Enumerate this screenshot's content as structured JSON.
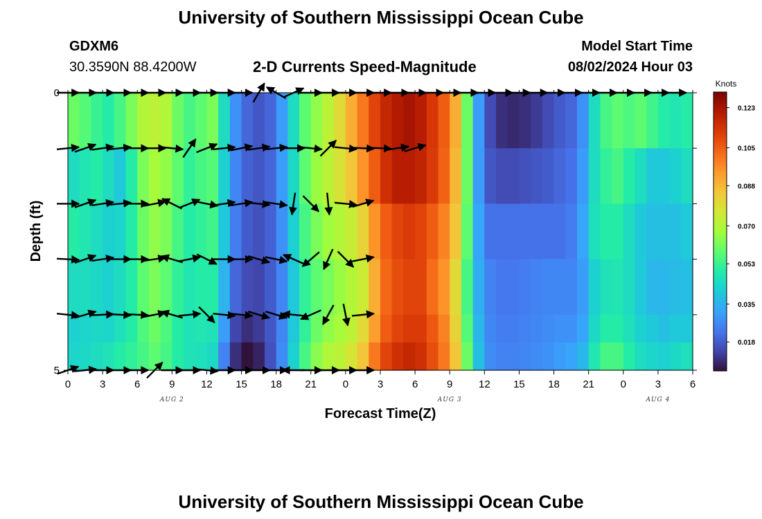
{
  "header": {
    "title": "University of Southern Mississippi Ocean Cube",
    "station": "GDXM6",
    "coords": "30.3590N  88.4200W",
    "subtitle": "2-D Currents Speed-Magnitude",
    "model_start_label": "Model Start Time",
    "model_start_value": "08/02/2024 Hour 03"
  },
  "footer": {
    "title": "University of Southern Mississippi Ocean Cube"
  },
  "chart_data": {
    "type": "heatmap",
    "xlabel": "Forecast Time(Z)",
    "ylabel": "Depth (ft)",
    "x_tick_labels": [
      "0",
      "3",
      "6",
      "9",
      "12",
      "15",
      "18",
      "21",
      "0",
      "3",
      "6",
      "9",
      "12",
      "15",
      "18",
      "21",
      "0",
      "3",
      "6"
    ],
    "date_labels": [
      {
        "label": "AUG 2",
        "hour": 9
      },
      {
        "label": "AUG 3",
        "hour": 33
      },
      {
        "label": "AUG 4",
        "hour": 51
      }
    ],
    "y_tick_labels": [
      "0",
      "5"
    ],
    "ylim": [
      0,
      5
    ],
    "xlim": [
      0,
      54
    ],
    "colorbar": {
      "units": "Knots",
      "min": 0.005,
      "max": 0.13,
      "tick_labels": [
        "0.123",
        "0.105",
        "0.088",
        "0.070",
        "0.053",
        "0.035",
        "0.018"
      ]
    },
    "hours": [
      0,
      1,
      2,
      3,
      4,
      5,
      6,
      7,
      8,
      9,
      10,
      11,
      12,
      13,
      14,
      15,
      16,
      17,
      18,
      19,
      20,
      21,
      22,
      23,
      24,
      25,
      26,
      27,
      28,
      29,
      30,
      31,
      32,
      33,
      34,
      35,
      36,
      37,
      38,
      39,
      40,
      41,
      42,
      43,
      44,
      45,
      46,
      47,
      48,
      49,
      50,
      51,
      52,
      53
    ],
    "depth_rows": [
      0.5,
      1.5,
      2.5,
      3.5,
      4.5,
      5.0
    ],
    "speed_knots": [
      [
        0.06,
        0.057,
        0.053,
        0.05,
        0.055,
        0.062,
        0.07,
        0.072,
        0.07,
        0.06,
        0.055,
        0.058,
        0.062,
        0.045,
        0.028,
        0.02,
        0.017,
        0.02,
        0.03,
        0.045,
        0.058,
        0.065,
        0.072,
        0.08,
        0.09,
        0.1,
        0.11,
        0.117,
        0.121,
        0.123,
        0.12,
        0.113,
        0.105,
        0.09,
        0.06,
        0.03,
        0.015,
        0.01,
        0.009,
        0.01,
        0.012,
        0.015,
        0.018,
        0.02,
        0.028,
        0.045,
        0.055,
        0.058,
        0.056,
        0.058,
        0.054,
        0.05,
        0.048,
        0.05
      ],
      [
        0.045,
        0.048,
        0.05,
        0.045,
        0.04,
        0.05,
        0.062,
        0.068,
        0.065,
        0.058,
        0.052,
        0.055,
        0.057,
        0.042,
        0.026,
        0.019,
        0.017,
        0.02,
        0.03,
        0.044,
        0.058,
        0.066,
        0.072,
        0.078,
        0.085,
        0.095,
        0.105,
        0.115,
        0.12,
        0.12,
        0.118,
        0.112,
        0.104,
        0.088,
        0.06,
        0.03,
        0.017,
        0.015,
        0.015,
        0.016,
        0.017,
        0.018,
        0.02,
        0.022,
        0.03,
        0.045,
        0.052,
        0.055,
        0.05,
        0.045,
        0.04,
        0.04,
        0.042,
        0.045
      ],
      [
        0.05,
        0.048,
        0.045,
        0.042,
        0.043,
        0.05,
        0.06,
        0.065,
        0.062,
        0.055,
        0.05,
        0.052,
        0.054,
        0.04,
        0.024,
        0.018,
        0.016,
        0.019,
        0.028,
        0.042,
        0.055,
        0.062,
        0.067,
        0.07,
        0.074,
        0.082,
        0.095,
        0.105,
        0.11,
        0.112,
        0.11,
        0.105,
        0.098,
        0.085,
        0.058,
        0.032,
        0.022,
        0.022,
        0.022,
        0.022,
        0.022,
        0.022,
        0.022,
        0.024,
        0.032,
        0.046,
        0.05,
        0.05,
        0.045,
        0.04,
        0.038,
        0.038,
        0.038,
        0.04
      ],
      [
        0.045,
        0.045,
        0.044,
        0.042,
        0.045,
        0.05,
        0.058,
        0.062,
        0.058,
        0.052,
        0.048,
        0.05,
        0.05,
        0.035,
        0.02,
        0.015,
        0.014,
        0.018,
        0.026,
        0.04,
        0.052,
        0.058,
        0.062,
        0.066,
        0.07,
        0.075,
        0.09,
        0.103,
        0.108,
        0.11,
        0.11,
        0.102,
        0.095,
        0.08,
        0.055,
        0.034,
        0.025,
        0.023,
        0.023,
        0.024,
        0.025,
        0.026,
        0.026,
        0.026,
        0.03,
        0.042,
        0.047,
        0.048,
        0.045,
        0.04,
        0.036,
        0.036,
        0.037,
        0.038
      ],
      [
        0.042,
        0.043,
        0.044,
        0.043,
        0.046,
        0.05,
        0.056,
        0.06,
        0.056,
        0.05,
        0.047,
        0.048,
        0.047,
        0.03,
        0.014,
        0.01,
        0.012,
        0.017,
        0.026,
        0.04,
        0.052,
        0.06,
        0.065,
        0.068,
        0.072,
        0.08,
        0.093,
        0.105,
        0.11,
        0.112,
        0.112,
        0.106,
        0.098,
        0.082,
        0.057,
        0.036,
        0.026,
        0.024,
        0.024,
        0.025,
        0.026,
        0.027,
        0.028,
        0.028,
        0.032,
        0.044,
        0.05,
        0.05,
        0.046,
        0.042,
        0.04,
        0.038,
        0.04,
        0.04
      ],
      [
        0.043,
        0.044,
        0.045,
        0.047,
        0.05,
        0.052,
        0.055,
        0.058,
        0.055,
        0.05,
        0.047,
        0.046,
        0.044,
        0.025,
        0.01,
        0.005,
        0.008,
        0.016,
        0.027,
        0.042,
        0.055,
        0.064,
        0.07,
        0.072,
        0.077,
        0.085,
        0.1,
        0.11,
        0.115,
        0.117,
        0.115,
        0.108,
        0.1,
        0.085,
        0.06,
        0.038,
        0.027,
        0.025,
        0.025,
        0.026,
        0.027,
        0.028,
        0.03,
        0.032,
        0.036,
        0.048,
        0.055,
        0.055,
        0.05,
        0.045,
        0.043,
        0.042,
        0.044,
        0.046
      ]
    ],
    "vector_hours": [
      0,
      1.5,
      3,
      4.5,
      6,
      7.5,
      9,
      10.5,
      12,
      13.5,
      15,
      16.5,
      18,
      19.5,
      21,
      22.5,
      24,
      25.5,
      27,
      28.5,
      30,
      31.5,
      33,
      34.5,
      36,
      37.5,
      39,
      40.5,
      42,
      43.5,
      45,
      46.5,
      48,
      49.5,
      51,
      52.5,
      54
    ],
    "vector_depths": [
      0,
      1,
      2,
      3,
      4,
      5
    ],
    "vectors": [
      [
        [
          1,
          0
        ],
        [
          1,
          0
        ],
        [
          1,
          0
        ],
        [
          1,
          0
        ],
        [
          1,
          0
        ],
        [
          1,
          0
        ],
        [
          1,
          0
        ],
        [
          1,
          0
        ],
        [
          1,
          0
        ],
        [
          1,
          0
        ],
        [
          1,
          0
        ],
        [
          0.5,
          -0.85
        ],
        [
          -0.85,
          -0.5
        ],
        [
          1,
          -0.45
        ],
        [
          1,
          0
        ],
        [
          1,
          0
        ],
        [
          1,
          0
        ],
        [
          1,
          0
        ],
        [
          1,
          0
        ],
        [
          1,
          0
        ],
        [
          1,
          0
        ],
        [
          1,
          0
        ],
        [
          1,
          0
        ],
        [
          1,
          0
        ],
        [
          1,
          0
        ],
        [
          1,
          0
        ],
        [
          1,
          0
        ],
        [
          1,
          0
        ],
        [
          1,
          0
        ],
        [
          1,
          0
        ],
        [
          1,
          0
        ],
        [
          1,
          0
        ],
        [
          1,
          0
        ],
        [
          1,
          0
        ],
        [
          1,
          0
        ],
        [
          1,
          0
        ]
      ],
      [
        [
          1,
          -0.1
        ],
        [
          1,
          -0.35
        ],
        [
          1,
          -0.15
        ],
        [
          1,
          -0.1
        ],
        [
          1,
          0
        ],
        [
          1,
          0
        ],
        [
          1,
          0.1
        ],
        [
          0.55,
          -0.8
        ],
        [
          1,
          -0.4
        ],
        [
          1,
          -0.1
        ],
        [
          1,
          -0.2
        ],
        [
          1,
          -0.15
        ],
        [
          1,
          -0.1
        ],
        [
          1,
          0
        ],
        [
          1,
          0.1
        ],
        [
          0.7,
          -0.7
        ],
        [
          1,
          0.1
        ],
        [
          1,
          0.05
        ],
        [
          1,
          0.05
        ],
        [
          1,
          -0.15
        ],
        [
          1,
          -0.3
        ]
      ],
      [
        [
          1,
          0
        ],
        [
          1,
          -0.35
        ],
        [
          1,
          -0.15
        ],
        [
          1,
          -0.1
        ],
        [
          1,
          0
        ],
        [
          1,
          -0.2
        ],
        [
          -1,
          -0.5
        ],
        [
          1,
          -0.4
        ],
        [
          1,
          0.2
        ],
        [
          1,
          -0.15
        ],
        [
          1,
          -0.15
        ],
        [
          1,
          0.1
        ],
        [
          1,
          0.15
        ],
        [
          -0.15,
          1
        ],
        [
          0.7,
          0.7
        ],
        [
          0.1,
          1
        ],
        [
          1,
          0.1
        ],
        [
          1,
          -0.3
        ]
      ],
      [
        [
          1,
          0.05
        ],
        [
          1,
          -0.35
        ],
        [
          1,
          -0.15
        ],
        [
          1,
          0
        ],
        [
          1,
          0
        ],
        [
          1,
          -0.15
        ],
        [
          -1,
          -0.3
        ],
        [
          1,
          -0.2
        ],
        [
          1,
          0.5
        ],
        [
          1,
          0
        ],
        [
          1,
          0
        ],
        [
          1,
          0.3
        ],
        [
          1,
          0.2
        ],
        [
          -0.9,
          -0.4
        ],
        [
          -0.7,
          0.6
        ],
        [
          -0.4,
          0.9
        ],
        [
          0.7,
          0.7
        ],
        [
          1,
          -0.2
        ]
      ],
      [
        [
          1,
          0.1
        ],
        [
          1,
          -0.3
        ],
        [
          1,
          -0.05
        ],
        [
          1,
          0.05
        ],
        [
          1,
          0.05
        ],
        [
          1,
          -0.2
        ],
        [
          -1,
          -0.3
        ],
        [
          1,
          -0.1
        ],
        [
          0.7,
          0.7
        ],
        [
          1,
          0.1
        ],
        [
          1,
          0.1
        ],
        [
          1,
          0.3
        ],
        [
          1,
          0.3
        ],
        [
          -1,
          -0.1
        ],
        [
          -0.9,
          0.4
        ],
        [
          -0.5,
          0.9
        ],
        [
          0.2,
          1
        ],
        [
          1,
          -0.1
        ]
      ],
      [
        [
          1,
          -0.35
        ],
        [
          1,
          -0.1
        ],
        [
          1,
          0
        ],
        [
          1,
          0
        ],
        [
          1,
          0
        ],
        [
          0.7,
          -0.7
        ],
        [
          1,
          0
        ],
        [
          1,
          0
        ],
        [
          1,
          0.1
        ],
        [
          1,
          0
        ],
        [
          1,
          0
        ],
        [
          1,
          0
        ],
        [
          1,
          0
        ],
        [
          -1,
          0
        ],
        [
          1,
          0
        ],
        [
          1,
          0
        ],
        [
          1,
          0
        ],
        [
          1,
          0
        ]
      ]
    ]
  }
}
